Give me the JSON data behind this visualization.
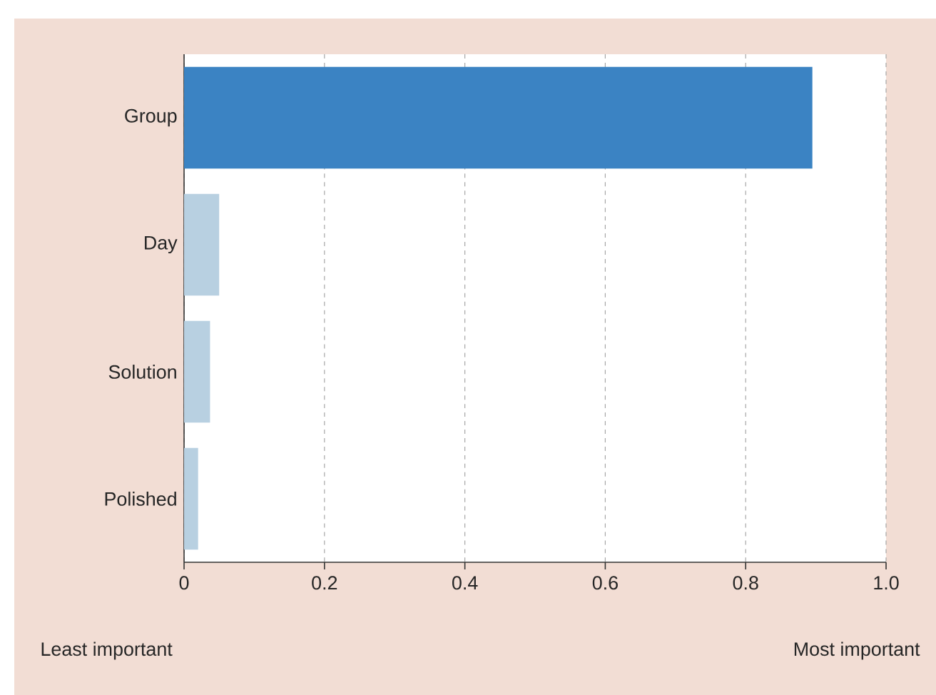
{
  "chart_data": {
    "type": "bar",
    "orientation": "horizontal",
    "categories": [
      "Group",
      "Day",
      "Solution",
      "Polished"
    ],
    "values": [
      0.895,
      0.05,
      0.037,
      0.02
    ],
    "colors": [
      "#3b83c3",
      "#b8d0e1",
      "#b8d0e1",
      "#b8d0e1"
    ],
    "xlim": [
      0,
      1
    ],
    "xticks": [
      0,
      0.2,
      0.4,
      0.6,
      0.8,
      {
        "value": 1,
        "label": "1.0"
      }
    ],
    "grid": "x",
    "annotations": [
      "Least important",
      "Most important"
    ]
  }
}
